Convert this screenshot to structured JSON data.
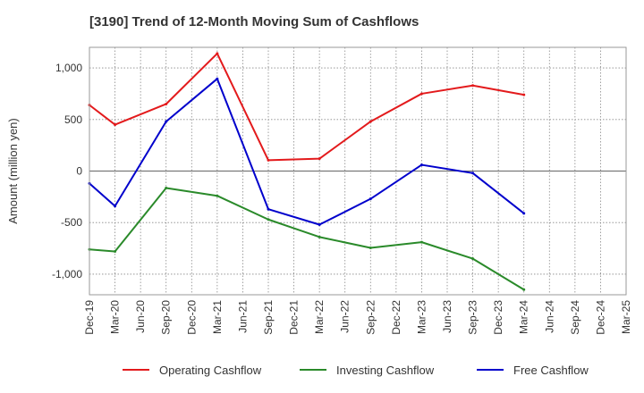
{
  "chart_data": {
    "type": "line",
    "title": "[3190]  Trend of 12-Month Moving Sum of Cashflows",
    "xlabel": "",
    "ylabel": "Amount (million yen)",
    "ylim": [
      -1200,
      1200
    ],
    "yticks": [
      1000,
      500,
      0,
      -500,
      -1000
    ],
    "ytick_labels": [
      "1,000",
      "500",
      "0",
      "-500",
      "-1,000"
    ],
    "categories": [
      "Dec-19",
      "Mar-20",
      "Jun-20",
      "Sep-20",
      "Dec-20",
      "Mar-21",
      "Jun-21",
      "Sep-21",
      "Dec-21",
      "Mar-22",
      "Jun-22",
      "Sep-22",
      "Dec-22",
      "Mar-23",
      "Jun-23",
      "Sep-23",
      "Dec-23",
      "Mar-24",
      "Jun-24",
      "Sep-24",
      "Dec-24",
      "Mar-25"
    ],
    "grid": true,
    "legend_position": "bottom",
    "series": [
      {
        "name": "Operating Cashflow",
        "color": "#e31a1c",
        "values": [
          640,
          450,
          null,
          650,
          null,
          1140,
          null,
          105,
          null,
          120,
          null,
          480,
          null,
          750,
          null,
          830,
          null,
          740,
          null,
          null,
          null,
          null
        ]
      },
      {
        "name": "Investing Cashflow",
        "color": "#2a8a2a",
        "values": [
          -760,
          -780,
          null,
          -165,
          null,
          -240,
          null,
          -470,
          null,
          -640,
          null,
          -745,
          null,
          -690,
          null,
          -850,
          null,
          -1150,
          null,
          null,
          null,
          null
        ]
      },
      {
        "name": "Free Cashflow",
        "color": "#0000cc",
        "values": [
          -120,
          -340,
          null,
          480,
          null,
          895,
          null,
          -370,
          null,
          -520,
          null,
          -270,
          null,
          60,
          null,
          -20,
          null,
          -410,
          null,
          null,
          null,
          null
        ]
      }
    ]
  }
}
